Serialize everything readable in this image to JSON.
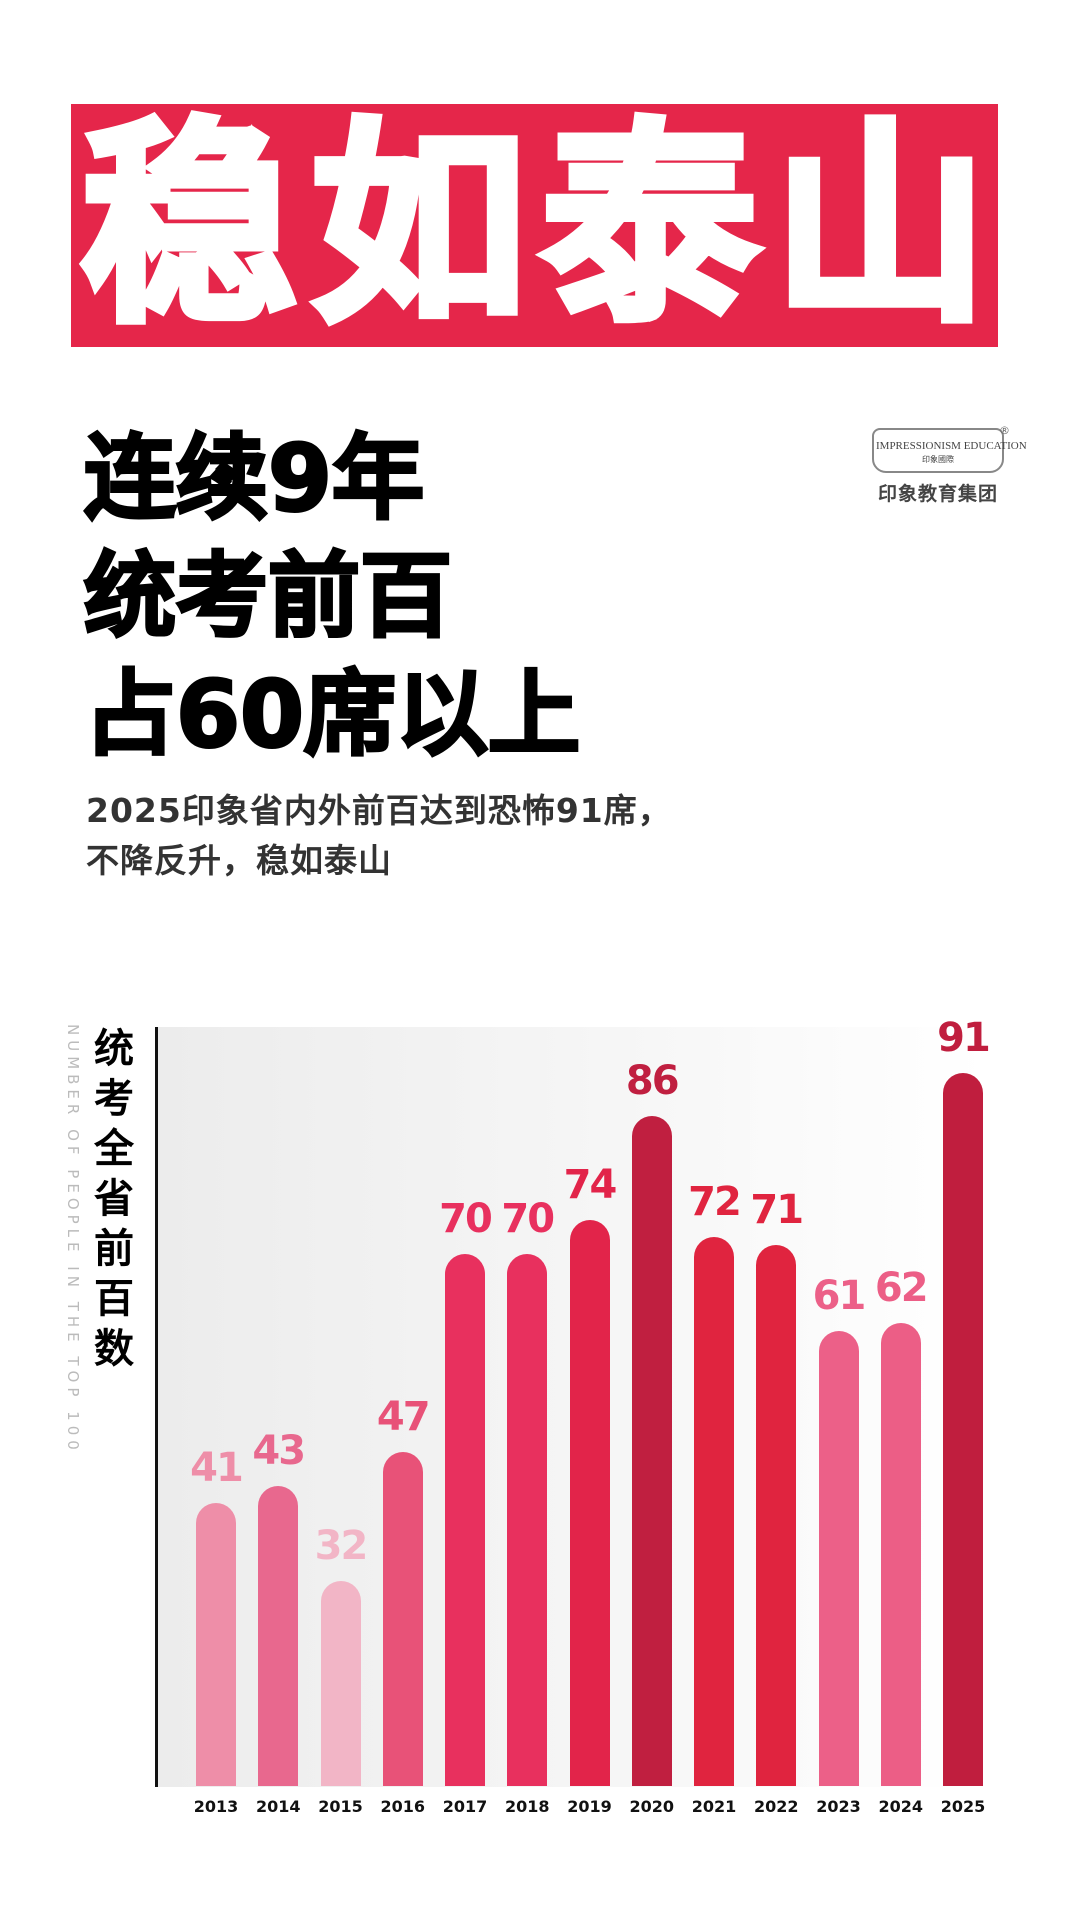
{
  "banner": {
    "chars": [
      "稳",
      "如",
      "泰",
      "山"
    ]
  },
  "headline": [
    "连续9年",
    "统考前百",
    "占60席以上"
  ],
  "subtitle": [
    "2025印象省内外前百达到恐怖91席，",
    "不降反升，稳如泰山"
  ],
  "logo": {
    "en": "IMPRESSIONISM EDUCATION",
    "cn_small": "印象國際",
    "cn": "印象教育集团",
    "reg": "®"
  },
  "chart_data": {
    "type": "bar",
    "ylabel": "统考全省前百数",
    "ylabel_en": "NUMBER OF PEOPLE IN THE TOP 100",
    "categories": [
      "2013",
      "2014",
      "2015",
      "2016",
      "2017",
      "2018",
      "2019",
      "2020",
      "2021",
      "2022",
      "2023",
      "2024",
      "2025"
    ],
    "values": [
      41,
      43,
      32,
      47,
      70,
      70,
      74,
      86,
      72,
      71,
      61,
      62,
      91
    ],
    "colors": [
      "#ee8ea8",
      "#e8688e",
      "#f2b5c6",
      "#e85278",
      "#e8305e",
      "#e8305e",
      "#e2244a",
      "#c01f40",
      "#e0243f",
      "#e0243f",
      "#ec6088",
      "#ec5e86",
      "#c01e3e"
    ]
  }
}
